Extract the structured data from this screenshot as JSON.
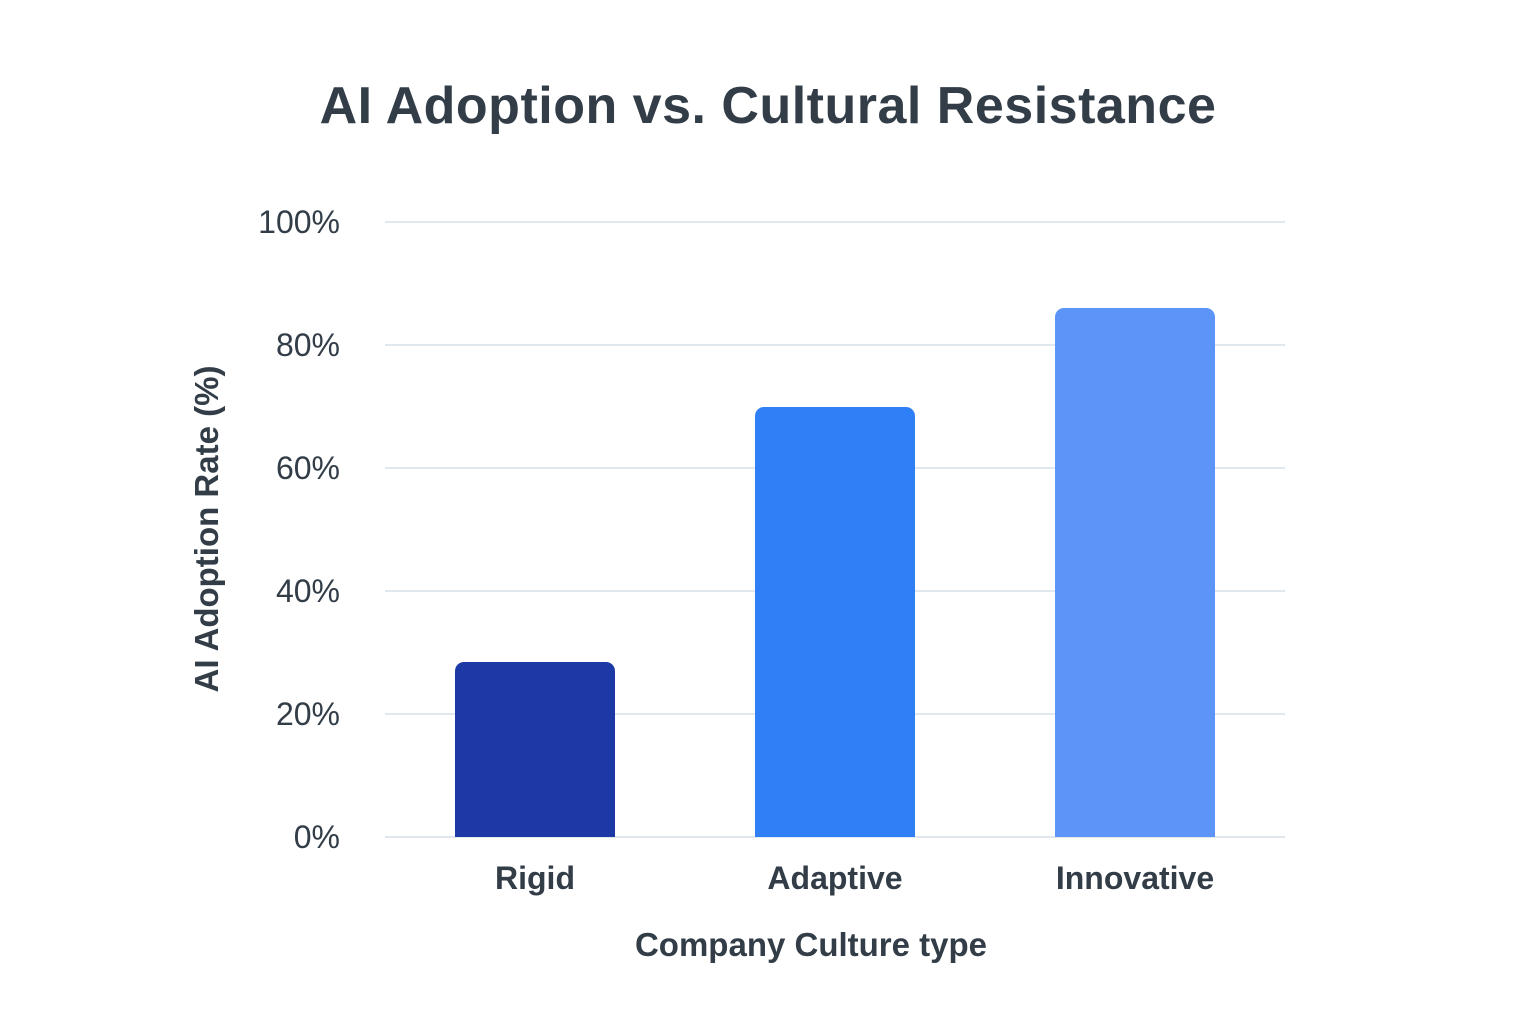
{
  "chart_data": {
    "type": "bar",
    "title": "AI Adoption vs. Cultural Resistance",
    "xlabel": "Company Culture type",
    "ylabel": "AI Adoption Rate (%)",
    "categories": [
      "Rigid",
      "Adaptive",
      "Innovative"
    ],
    "values": [
      28.5,
      70,
      86
    ],
    "value_unit": "%",
    "ylim": [
      0,
      100
    ],
    "yticks": [
      0,
      20,
      40,
      60,
      80,
      100
    ],
    "ytick_labels": [
      "0%",
      "20%",
      "40%",
      "60%",
      "80%",
      "100%"
    ],
    "bar_colors": [
      "#1c39a6",
      "#2f80f7",
      "#5c94f8"
    ],
    "grid": true,
    "legend": "none",
    "colors": {
      "background": "#ffffff",
      "text": "#323d48",
      "gridline": "#e1e7ee"
    }
  }
}
